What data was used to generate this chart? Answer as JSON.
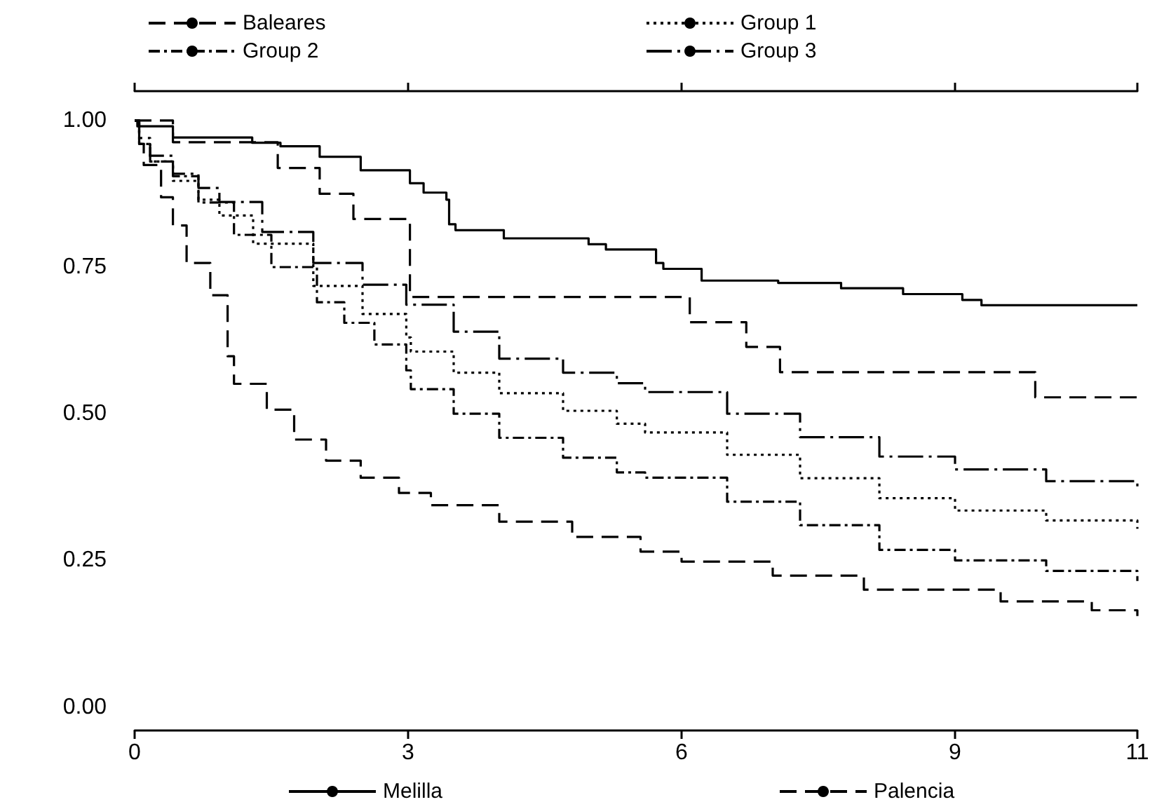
{
  "chart_data": {
    "type": "step",
    "xlim": [
      0,
      11
    ],
    "xticks": [
      0,
      3,
      6,
      9,
      11
    ],
    "ylim": [
      -0.04,
      1.05
    ],
    "yticks": [
      {
        "value": 0,
        "label": "0.00"
      },
      {
        "value": 0.25,
        "label": "0.25"
      },
      {
        "value": 0.5,
        "label": "0.50"
      },
      {
        "value": 0.75,
        "label": "0.75"
      },
      {
        "value": 1,
        "label": "1.00"
      }
    ],
    "grid": false,
    "legend": "top",
    "marker": "none",
    "series": [
      {
        "name": "Baleares",
        "color": "#000000",
        "line_style": "dashed",
        "x": [
          0,
          0.42,
          1.57,
          2.03,
          2.4,
          3.02,
          6.09,
          6.71,
          7.08,
          9.88,
          11
        ],
        "values": [
          1.0,
          0.963,
          0.919,
          0.875,
          0.832,
          0.699,
          0.656,
          0.614,
          0.571,
          0.528,
          0.528
        ]
      },
      {
        "name": "Group 1",
        "color": "#000000",
        "line_style": "dotted",
        "x": [
          0,
          0.05,
          0.17,
          0.42,
          0.7,
          0.93,
          1.3,
          1.96,
          2.5,
          2.98,
          3.03,
          3.5,
          4.0,
          4.7,
          5.29,
          5.6,
          6.5,
          7.3,
          8.17,
          9.0,
          10.0,
          11
        ],
        "values": [
          1.0,
          0.96,
          0.93,
          0.897,
          0.865,
          0.838,
          0.79,
          0.718,
          0.67,
          0.63,
          0.606,
          0.57,
          0.535,
          0.505,
          0.483,
          0.468,
          0.43,
          0.39,
          0.356,
          0.335,
          0.318,
          0.304
        ]
      },
      {
        "name": "Group 2",
        "color": "#000000",
        "line_style": "dashdot",
        "x": [
          0,
          0.05,
          0.17,
          0.42,
          0.7,
          1.09,
          1.5,
          2.0,
          2.3,
          2.63,
          2.98,
          3.03,
          3.5,
          4.0,
          4.7,
          5.29,
          5.6,
          6.5,
          7.3,
          8.17,
          9.0,
          10.0,
          11
        ],
        "values": [
          1.0,
          0.96,
          0.93,
          0.905,
          0.86,
          0.805,
          0.75,
          0.69,
          0.655,
          0.618,
          0.574,
          0.542,
          0.5,
          0.459,
          0.425,
          0.4,
          0.391,
          0.35,
          0.31,
          0.268,
          0.25,
          0.232,
          0.215
        ]
      },
      {
        "name": "Group 3",
        "color": "#000000",
        "line_style": "longdashdot",
        "x": [
          0,
          0.05,
          0.17,
          0.42,
          0.7,
          0.93,
          1.4,
          1.96,
          2.5,
          2.98,
          3.5,
          4.0,
          4.7,
          5.29,
          5.6,
          6.5,
          7.3,
          8.17,
          9.0,
          10.0,
          11
        ],
        "values": [
          1.0,
          0.97,
          0.94,
          0.909,
          0.885,
          0.861,
          0.81,
          0.757,
          0.72,
          0.686,
          0.64,
          0.594,
          0.57,
          0.552,
          0.537,
          0.5,
          0.46,
          0.427,
          0.405,
          0.385,
          0.37
        ]
      },
      {
        "name": "Melilla",
        "color": "#000000",
        "line_style": "solid",
        "x": [
          0,
          0.03,
          0.42,
          1.29,
          1.6,
          2.03,
          2.48,
          3.02,
          3.17,
          3.42,
          3.45,
          3.52,
          4.05,
          4.98,
          5.17,
          5.72,
          5.8,
          6.22,
          7.06,
          7.75,
          8.43,
          9.08,
          9.29,
          11
        ],
        "values": [
          1.0,
          0.99,
          0.971,
          0.962,
          0.956,
          0.938,
          0.915,
          0.893,
          0.877,
          0.865,
          0.823,
          0.813,
          0.799,
          0.789,
          0.78,
          0.757,
          0.747,
          0.727,
          0.723,
          0.714,
          0.704,
          0.694,
          0.685,
          0.685
        ]
      },
      {
        "name": "Palencia",
        "color": "#000000",
        "line_style": "dashed",
        "x": [
          0,
          0.05,
          0.1,
          0.29,
          0.42,
          0.57,
          0.83,
          1.02,
          1.09,
          1.45,
          1.75,
          2.1,
          2.48,
          2.9,
          3.25,
          4.0,
          4.8,
          5.55,
          6.0,
          7.0,
          8.0,
          9.5,
          10.5,
          11
        ],
        "values": [
          1.0,
          0.96,
          0.924,
          0.869,
          0.821,
          0.757,
          0.702,
          0.598,
          0.551,
          0.507,
          0.456,
          0.42,
          0.391,
          0.365,
          0.344,
          0.316,
          0.29,
          0.265,
          0.248,
          0.224,
          0.2,
          0.18,
          0.165,
          0.155
        ]
      }
    ]
  }
}
